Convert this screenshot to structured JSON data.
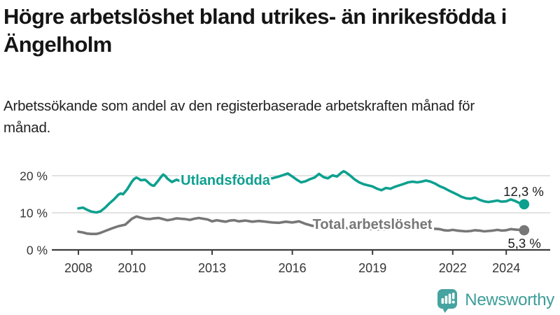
{
  "header": {
    "title": "Högre arbetslöshet bland utrikes- än inrikesfödda i Ängelholm",
    "subtitle": "Arbetssökande som andel av den registerbaserade arbetskraften månad för månad."
  },
  "chart_data": {
    "type": "line",
    "title": "Högre arbetslöshet bland utrikes- än inrikesfödda i Ängelholm",
    "subtitle": "Arbetssökande som andel av den registerbaserade arbetskraften månad för månad.",
    "xlabel": "",
    "ylabel": "",
    "xlim": [
      2007.6,
      2025.3
    ],
    "ylim": [
      0,
      22
    ],
    "grid": "horizontal",
    "legend_position": "inline-labels",
    "x_ticks": [
      "2008",
      "2010",
      "2013",
      "2016",
      "2019",
      "2022",
      "2024"
    ],
    "x_tick_years": [
      2008,
      2010,
      2013,
      2016,
      2019,
      2022,
      2024
    ],
    "y_ticks": [
      {
        "value": 0,
        "label": "0 %"
      },
      {
        "value": 10,
        "label": "10 %"
      },
      {
        "value": 20,
        "label": "20 %"
      }
    ],
    "y_gridlines": [
      10,
      20
    ],
    "series": [
      {
        "name": "Utlandsfödda",
        "color": "#0da08f",
        "end_label": "12,3 %",
        "end_value": 12.3,
        "points": [
          [
            2008.0,
            11.2
          ],
          [
            2008.17,
            11.4
          ],
          [
            2008.33,
            10.8
          ],
          [
            2008.5,
            10.3
          ],
          [
            2008.67,
            10.1
          ],
          [
            2008.83,
            10.4
          ],
          [
            2009.0,
            11.4
          ],
          [
            2009.17,
            12.6
          ],
          [
            2009.33,
            13.6
          ],
          [
            2009.5,
            14.9
          ],
          [
            2009.58,
            15.2
          ],
          [
            2009.67,
            15.0
          ],
          [
            2009.83,
            16.4
          ],
          [
            2010.0,
            18.4
          ],
          [
            2010.08,
            19.1
          ],
          [
            2010.17,
            19.5
          ],
          [
            2010.25,
            19.2
          ],
          [
            2010.33,
            18.8
          ],
          [
            2010.5,
            18.9
          ],
          [
            2010.58,
            18.4
          ],
          [
            2010.67,
            17.8
          ],
          [
            2010.75,
            17.4
          ],
          [
            2010.83,
            17.3
          ],
          [
            2011.0,
            18.8
          ],
          [
            2011.08,
            19.6
          ],
          [
            2011.17,
            20.3
          ],
          [
            2011.25,
            19.9
          ],
          [
            2011.33,
            19.2
          ],
          [
            2011.42,
            18.7
          ],
          [
            2011.5,
            18.3
          ],
          [
            2011.58,
            18.6
          ],
          [
            2011.67,
            18.9
          ],
          [
            2011.83,
            18.5
          ],
          [
            2012.0,
            18.6
          ],
          [
            2012.25,
            18.9
          ],
          [
            2012.5,
            18.4
          ],
          [
            2012.75,
            18.8
          ],
          [
            2013.0,
            19.1
          ],
          [
            2013.25,
            18.8
          ],
          [
            2013.5,
            18.5
          ],
          [
            2013.75,
            18.8
          ],
          [
            2014.0,
            19.0
          ],
          [
            2014.25,
            18.7
          ],
          [
            2014.5,
            18.5
          ],
          [
            2014.75,
            18.7
          ],
          [
            2015.0,
            19.0
          ],
          [
            2015.25,
            19.3
          ],
          [
            2015.5,
            19.8
          ],
          [
            2015.67,
            20.2
          ],
          [
            2015.83,
            20.6
          ],
          [
            2016.0,
            19.8
          ],
          [
            2016.17,
            18.9
          ],
          [
            2016.33,
            18.2
          ],
          [
            2016.5,
            18.5
          ],
          [
            2016.67,
            19.1
          ],
          [
            2016.83,
            19.5
          ],
          [
            2017.0,
            20.5
          ],
          [
            2017.17,
            19.6
          ],
          [
            2017.33,
            19.3
          ],
          [
            2017.5,
            20.1
          ],
          [
            2017.67,
            19.8
          ],
          [
            2017.83,
            20.8
          ],
          [
            2017.92,
            21.2
          ],
          [
            2018.0,
            20.9
          ],
          [
            2018.17,
            20.0
          ],
          [
            2018.33,
            19.0
          ],
          [
            2018.5,
            18.2
          ],
          [
            2018.67,
            17.7
          ],
          [
            2018.83,
            17.4
          ],
          [
            2019.0,
            17.1
          ],
          [
            2019.17,
            16.5
          ],
          [
            2019.33,
            16.1
          ],
          [
            2019.5,
            16.7
          ],
          [
            2019.67,
            16.5
          ],
          [
            2019.83,
            17.0
          ],
          [
            2020.0,
            17.4
          ],
          [
            2020.17,
            17.8
          ],
          [
            2020.33,
            18.2
          ],
          [
            2020.5,
            18.4
          ],
          [
            2020.67,
            18.2
          ],
          [
            2020.83,
            18.4
          ],
          [
            2021.0,
            18.7
          ],
          [
            2021.17,
            18.4
          ],
          [
            2021.33,
            17.9
          ],
          [
            2021.5,
            17.2
          ],
          [
            2021.67,
            16.7
          ],
          [
            2021.83,
            16.1
          ],
          [
            2022.0,
            15.5
          ],
          [
            2022.17,
            14.9
          ],
          [
            2022.33,
            14.3
          ],
          [
            2022.5,
            13.9
          ],
          [
            2022.67,
            13.8
          ],
          [
            2022.83,
            14.1
          ],
          [
            2023.0,
            13.5
          ],
          [
            2023.17,
            13.1
          ],
          [
            2023.33,
            12.9
          ],
          [
            2023.5,
            13.1
          ],
          [
            2023.67,
            13.3
          ],
          [
            2023.83,
            13.0
          ],
          [
            2024.0,
            13.1
          ],
          [
            2024.17,
            13.6
          ],
          [
            2024.33,
            13.2
          ],
          [
            2024.5,
            12.6
          ],
          [
            2024.67,
            12.3
          ]
        ]
      },
      {
        "name": "Total arbetslöshet",
        "color": "#777777",
        "end_label": "5,3 %",
        "end_value": 5.3,
        "points": [
          [
            2008.0,
            4.9
          ],
          [
            2008.17,
            4.7
          ],
          [
            2008.33,
            4.4
          ],
          [
            2008.5,
            4.3
          ],
          [
            2008.67,
            4.3
          ],
          [
            2008.83,
            4.6
          ],
          [
            2009.0,
            5.1
          ],
          [
            2009.25,
            5.8
          ],
          [
            2009.5,
            6.4
          ],
          [
            2009.75,
            6.8
          ],
          [
            2010.0,
            8.4
          ],
          [
            2010.17,
            9.0
          ],
          [
            2010.33,
            8.7
          ],
          [
            2010.5,
            8.4
          ],
          [
            2010.67,
            8.3
          ],
          [
            2010.83,
            8.5
          ],
          [
            2011.0,
            8.6
          ],
          [
            2011.17,
            8.3
          ],
          [
            2011.33,
            8.0
          ],
          [
            2011.5,
            8.2
          ],
          [
            2011.67,
            8.5
          ],
          [
            2011.83,
            8.4
          ],
          [
            2012.0,
            8.3
          ],
          [
            2012.17,
            8.1
          ],
          [
            2012.33,
            8.4
          ],
          [
            2012.5,
            8.6
          ],
          [
            2012.67,
            8.4
          ],
          [
            2012.83,
            8.2
          ],
          [
            2013.0,
            7.7
          ],
          [
            2013.17,
            8.0
          ],
          [
            2013.33,
            7.8
          ],
          [
            2013.5,
            7.6
          ],
          [
            2013.67,
            7.9
          ],
          [
            2013.83,
            8.0
          ],
          [
            2014.0,
            7.7
          ],
          [
            2014.25,
            7.9
          ],
          [
            2014.5,
            7.6
          ],
          [
            2014.75,
            7.8
          ],
          [
            2015.0,
            7.6
          ],
          [
            2015.25,
            7.4
          ],
          [
            2015.5,
            7.3
          ],
          [
            2015.75,
            7.6
          ],
          [
            2016.0,
            7.4
          ],
          [
            2016.25,
            7.7
          ],
          [
            2016.5,
            7.0
          ],
          [
            2016.75,
            6.5
          ],
          [
            2017.0,
            6.3
          ],
          [
            2017.5,
            6.1
          ],
          [
            2018.0,
            5.9
          ],
          [
            2018.5,
            5.7
          ],
          [
            2019.0,
            5.6
          ],
          [
            2019.5,
            5.5
          ],
          [
            2020.0,
            6.2
          ],
          [
            2020.5,
            6.5
          ],
          [
            2021.0,
            6.0
          ],
          [
            2021.33,
            5.7
          ],
          [
            2021.5,
            5.6
          ],
          [
            2021.67,
            5.3
          ],
          [
            2021.83,
            5.2
          ],
          [
            2022.0,
            5.4
          ],
          [
            2022.17,
            5.2
          ],
          [
            2022.33,
            5.1
          ],
          [
            2022.5,
            5.0
          ],
          [
            2022.67,
            5.1
          ],
          [
            2022.83,
            5.3
          ],
          [
            2023.0,
            5.2
          ],
          [
            2023.17,
            5.0
          ],
          [
            2023.33,
            5.1
          ],
          [
            2023.5,
            5.2
          ],
          [
            2023.67,
            5.4
          ],
          [
            2023.83,
            5.2
          ],
          [
            2024.0,
            5.3
          ],
          [
            2024.17,
            5.6
          ],
          [
            2024.33,
            5.5
          ],
          [
            2024.5,
            5.4
          ],
          [
            2024.67,
            5.3
          ]
        ]
      }
    ]
  },
  "footer": {
    "brand": "Newsworthy",
    "brand_color": "#3d9d99"
  }
}
